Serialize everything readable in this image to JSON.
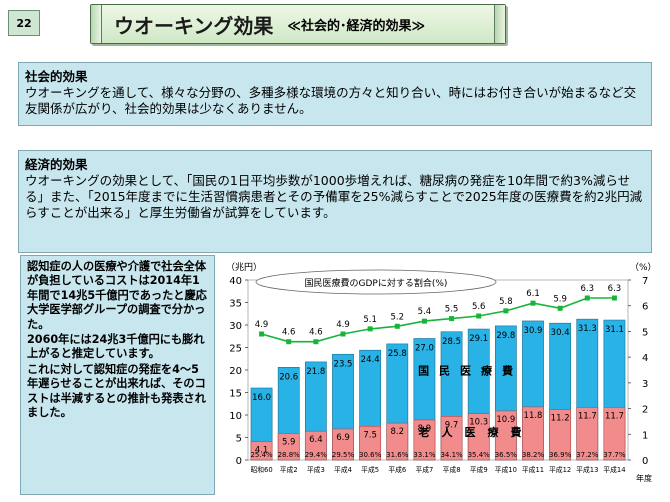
{
  "page_number": "22",
  "header": {
    "title": "ウオーキング効果",
    "subtitle": "≪社会的･経済的効果≫"
  },
  "social": {
    "heading": "社会的効果",
    "text": "ウオーキングを通して、様々な分野の、多種多様な環境の方々と知り合い、時にはお付き合いが始まるなど交友関係が広がり、社会的効果は少なくありません。"
  },
  "economic": {
    "heading": "経済的効果",
    "text": "ウオーキングの効果として、「国民の1日平均歩数が1000歩増えれば、糖尿病の発症を10年間で約3%減らせる」また、「2015年度までに生活習慣病患者とその予備軍を25%減らすことで2025年度の医療費を約2兆円減らすことが出来る」と厚生労働省が試算をしています。"
  },
  "dementia": {
    "p1": "認知症の人の医療や介護で社会全体が負担しているコストは2014年1年間で14兆5千億円であったと慶応大学医学部グループの調査で分かった。",
    "p2": "2060年には24兆3千億円にも膨れ上がると推定しています。",
    "p3": "これに対して認知症の発症を4～5年遅らせることが出来れば、そのコストは半減するとの推計も発表されました。"
  },
  "chart_data": {
    "type": "bar",
    "left_unit": "（兆円）",
    "right_unit": "（%）",
    "x_unit": "年度",
    "categories": [
      "昭和60",
      "平成2",
      "平成3",
      "平成4",
      "平成5",
      "平成6",
      "平成7",
      "平成8",
      "平成9",
      "平成10",
      "平成11",
      "平成12",
      "平成13",
      "平成14"
    ],
    "ylim": [
      0,
      40
    ],
    "y_ticks": [
      "0",
      "5",
      "10",
      "15",
      "20",
      "25",
      "30",
      "35",
      "40"
    ],
    "y2lim": [
      0,
      7
    ],
    "y2_ticks": [
      "0",
      "1",
      "2",
      "3",
      "4",
      "5",
      "6",
      "7"
    ],
    "series": [
      {
        "name": "国民医療費",
        "color": "#29b2e6",
        "values": [
          16.0,
          20.6,
          21.8,
          23.5,
          24.4,
          25.8,
          27.0,
          28.5,
          29.1,
          29.8,
          30.9,
          30.4,
          31.3,
          31.1
        ]
      },
      {
        "name": "老人医療費",
        "color": "#f28b8b",
        "values": [
          4.1,
          5.9,
          6.4,
          6.9,
          7.5,
          8.2,
          8.9,
          9.7,
          10.3,
          10.9,
          11.8,
          11.2,
          11.7,
          11.7
        ]
      }
    ],
    "ratio_labels": [
      "25.4%",
      "28.8%",
      "29.4%",
      "29.5%",
      "30.6%",
      "31.6%",
      "33.1%",
      "34.1%",
      "35.4%",
      "36.5%",
      "38.2%",
      "36.9%",
      "37.2%",
      "37.7%"
    ],
    "line": {
      "name": "国民医療費のGDPに対する割合(%)",
      "color": "#16b53a",
      "values": [
        4.9,
        4.6,
        4.6,
        4.9,
        5.1,
        5.2,
        5.4,
        5.5,
        5.6,
        5.8,
        6.1,
        5.9,
        6.3,
        6.3
      ]
    }
  }
}
